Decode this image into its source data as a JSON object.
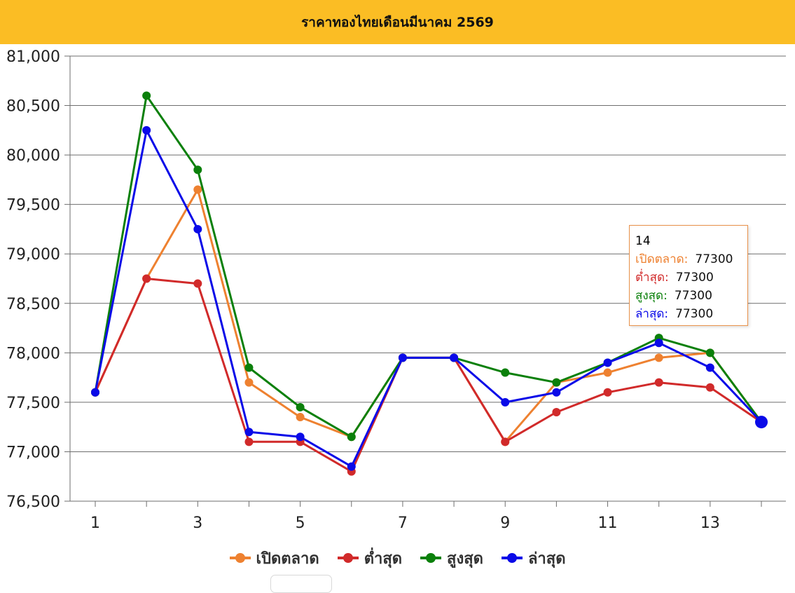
{
  "header": {
    "title": "ราคาทองไทยเดือนมีนาคม 2569"
  },
  "chart_data": {
    "type": "line",
    "title": "ราคาทองไทยเดือนมีนาคม 2569",
    "x": [
      1,
      2,
      3,
      4,
      5,
      6,
      7,
      8,
      9,
      10,
      11,
      12,
      13,
      14
    ],
    "xticks": [
      1,
      3,
      5,
      7,
      9,
      11,
      13
    ],
    "ylim": [
      76500,
      81000
    ],
    "yticks": [
      76500,
      77000,
      77500,
      78000,
      78500,
      79000,
      79500,
      80000,
      80500,
      81000
    ],
    "ytick_labels": [
      "76,500",
      "77,000",
      "77,500",
      "78,000",
      "78,500",
      "79,000",
      "79,500",
      "80,000",
      "80,500",
      "81,000"
    ],
    "grid": true,
    "legend_position": "bottom",
    "series": [
      {
        "name": "เปิดตลาด",
        "color": "#ee8130",
        "values": [
          77600,
          78750,
          79650,
          77700,
          77350,
          77150,
          77950,
          77950,
          77100,
          77700,
          77800,
          77950,
          78000,
          77300
        ]
      },
      {
        "name": "ต่ำสุด",
        "color": "#d12a2a",
        "values": [
          77600,
          78750,
          78700,
          77100,
          77100,
          76800,
          77950,
          77950,
          77100,
          77400,
          77600,
          77700,
          77650,
          77300
        ]
      },
      {
        "name": "สูงสุด",
        "color": "#0b800b",
        "values": [
          77600,
          80600,
          79850,
          77850,
          77450,
          77150,
          77950,
          77950,
          77800,
          77700,
          77900,
          78150,
          78000,
          77300
        ]
      },
      {
        "name": "ล่าสุด",
        "color": "#0a0ae8",
        "values": [
          77600,
          80250,
          79250,
          77200,
          77150,
          76850,
          77950,
          77950,
          77500,
          77600,
          77900,
          78100,
          77850,
          77300
        ]
      }
    ],
    "highlight_x": 14
  },
  "tooltip": {
    "header": "14",
    "rows": [
      {
        "label": "เปิดตลาด:",
        "value": "77300",
        "color": "#ee8130"
      },
      {
        "label": "ต่ำสุด:",
        "value": "77300",
        "color": "#d12a2a"
      },
      {
        "label": "สูงสุด:",
        "value": "77300",
        "color": "#0b800b"
      },
      {
        "label": "ล่าสุด:",
        "value": "77300",
        "color": "#0a0ae8"
      }
    ]
  }
}
